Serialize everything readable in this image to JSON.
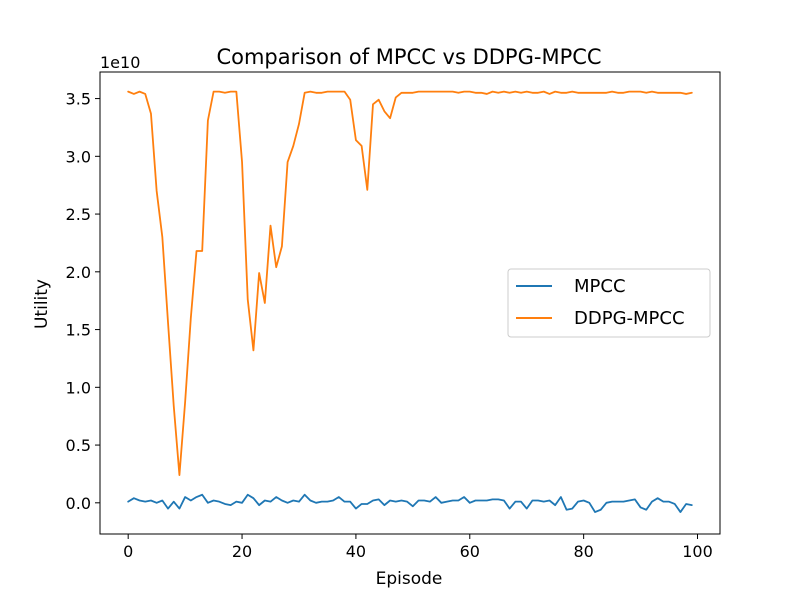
{
  "chart_data": {
    "type": "line",
    "title": "Comparison of MPCC vs DDPG-MPCC",
    "xlabel": "Episode",
    "ylabel": "Utility",
    "y_scale_label": "1e10",
    "xlim": [
      -4.95,
      103.95
    ],
    "ylim": [
      -0.27,
      3.73
    ],
    "x_ticks": [
      0,
      20,
      40,
      60,
      80,
      100
    ],
    "x_tick_labels": [
      "0",
      "20",
      "40",
      "60",
      "80",
      "100"
    ],
    "y_ticks": [
      0.0,
      0.5,
      1.0,
      1.5,
      2.0,
      2.5,
      3.0,
      3.5
    ],
    "y_tick_labels": [
      "0.0",
      "0.5",
      "1.0",
      "1.5",
      "2.0",
      "2.5",
      "3.0",
      "3.5"
    ],
    "grid": false,
    "legend_position": "center-right",
    "legend": [
      "MPCC",
      "DDPG-MPCC"
    ],
    "x": [
      0,
      1,
      2,
      3,
      4,
      5,
      6,
      7,
      8,
      9,
      10,
      11,
      12,
      13,
      14,
      15,
      16,
      17,
      18,
      19,
      20,
      21,
      22,
      23,
      24,
      25,
      26,
      27,
      28,
      29,
      30,
      31,
      32,
      33,
      34,
      35,
      36,
      37,
      38,
      39,
      40,
      41,
      42,
      43,
      44,
      45,
      46,
      47,
      48,
      49,
      50,
      51,
      52,
      53,
      54,
      55,
      56,
      57,
      58,
      59,
      60,
      61,
      62,
      63,
      64,
      65,
      66,
      67,
      68,
      69,
      70,
      71,
      72,
      73,
      74,
      75,
      76,
      77,
      78,
      79,
      80,
      81,
      82,
      83,
      84,
      85,
      86,
      87,
      88,
      89,
      90,
      91,
      92,
      93,
      94,
      95,
      96,
      97,
      98,
      99
    ],
    "series": [
      {
        "name": "MPCC",
        "color": "#1f77b4",
        "values": [
          0.01,
          0.04,
          0.02,
          0.01,
          0.02,
          0.0,
          0.02,
          -0.05,
          0.01,
          -0.05,
          0.05,
          0.02,
          0.05,
          0.07,
          0.0,
          0.02,
          0.01,
          -0.01,
          -0.02,
          0.01,
          0.0,
          0.07,
          0.04,
          -0.02,
          0.02,
          0.01,
          0.05,
          0.02,
          0.0,
          0.02,
          0.01,
          0.07,
          0.02,
          0.0,
          0.01,
          0.01,
          0.02,
          0.05,
          0.01,
          0.01,
          -0.05,
          -0.01,
          -0.01,
          0.02,
          0.03,
          -0.02,
          0.02,
          0.01,
          0.02,
          0.01,
          -0.03,
          0.02,
          0.02,
          0.01,
          0.05,
          0.0,
          0.01,
          0.02,
          0.02,
          0.05,
          0.0,
          0.02,
          0.02,
          0.02,
          0.03,
          0.03,
          0.02,
          -0.05,
          0.01,
          0.01,
          -0.05,
          0.02,
          0.02,
          0.01,
          0.02,
          -0.02,
          0.05,
          -0.06,
          -0.05,
          0.01,
          0.02,
          0.0,
          -0.08,
          -0.06,
          0.0,
          0.01,
          0.01,
          0.01,
          0.02,
          0.03,
          -0.04,
          -0.06,
          0.01,
          0.04,
          0.01,
          0.01,
          -0.01,
          -0.08,
          -0.01,
          -0.02
        ]
      },
      {
        "name": "DDPG-MPCC",
        "color": "#ff7f0e",
        "values": [
          3.56,
          3.54,
          3.56,
          3.54,
          3.37,
          2.7,
          2.3,
          1.56,
          0.84,
          0.24,
          0.87,
          1.6,
          2.18,
          2.18,
          3.31,
          3.56,
          3.56,
          3.55,
          3.56,
          3.56,
          2.95,
          1.76,
          1.32,
          1.99,
          1.73,
          2.4,
          2.04,
          2.22,
          2.95,
          3.09,
          3.28,
          3.55,
          3.56,
          3.55,
          3.55,
          3.56,
          3.56,
          3.56,
          3.56,
          3.49,
          3.14,
          3.09,
          2.71,
          3.45,
          3.49,
          3.39,
          3.33,
          3.51,
          3.55,
          3.55,
          3.55,
          3.56,
          3.56,
          3.56,
          3.56,
          3.56,
          3.56,
          3.56,
          3.55,
          3.56,
          3.56,
          3.55,
          3.55,
          3.54,
          3.56,
          3.55,
          3.56,
          3.55,
          3.56,
          3.55,
          3.56,
          3.55,
          3.55,
          3.56,
          3.54,
          3.56,
          3.55,
          3.55,
          3.56,
          3.55,
          3.55,
          3.55,
          3.55,
          3.55,
          3.55,
          3.56,
          3.55,
          3.55,
          3.56,
          3.56,
          3.56,
          3.55,
          3.56,
          3.55,
          3.55,
          3.55,
          3.55,
          3.55,
          3.54,
          3.55
        ]
      }
    ]
  }
}
